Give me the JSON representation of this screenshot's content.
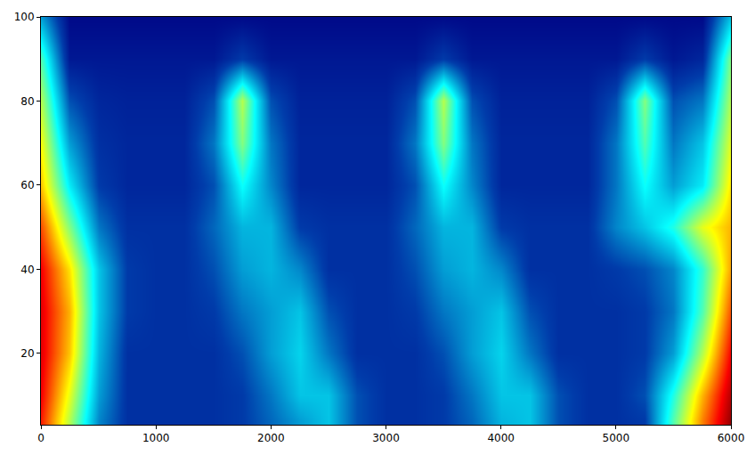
{
  "chart_data": {
    "type": "heatmap",
    "color": "Jet",
    "grid": false,
    "xlim": [
      0,
      6000
    ],
    "xticks": [
      0,
      1000,
      2000,
      3000,
      4000,
      5000,
      6000
    ],
    "ylim": [
      3,
      100
    ],
    "yticks": [
      20,
      40,
      60,
      80,
      100
    ],
    "zlim": [
      0,
      1
    ],
    "x": [
      0,
      250,
      500,
      750,
      1000,
      1250,
      1500,
      1750,
      2000,
      2250,
      2500,
      2750,
      3000,
      3250,
      3500,
      3750,
      4000,
      4250,
      4500,
      4750,
      5000,
      5250,
      5500,
      5750,
      6000
    ],
    "y": [
      4,
      10,
      20,
      30,
      40,
      50,
      60,
      70,
      80,
      90,
      100
    ],
    "z": [
      [
        0.85,
        0.55,
        0.22,
        0.1,
        0.1,
        0.1,
        0.1,
        0.12,
        0.18,
        0.25,
        0.3,
        0.15,
        0.1,
        0.1,
        0.12,
        0.18,
        0.28,
        0.3,
        0.15,
        0.1,
        0.1,
        0.12,
        0.45,
        0.75,
        0.98
      ],
      [
        0.88,
        0.6,
        0.25,
        0.1,
        0.1,
        0.1,
        0.1,
        0.12,
        0.2,
        0.3,
        0.3,
        0.15,
        0.1,
        0.1,
        0.12,
        0.2,
        0.3,
        0.3,
        0.15,
        0.1,
        0.1,
        0.15,
        0.4,
        0.7,
        0.95
      ],
      [
        0.9,
        0.68,
        0.28,
        0.1,
        0.1,
        0.1,
        0.1,
        0.15,
        0.25,
        0.32,
        0.2,
        0.1,
        0.1,
        0.1,
        0.15,
        0.25,
        0.32,
        0.2,
        0.1,
        0.1,
        0.1,
        0.12,
        0.25,
        0.55,
        0.88
      ],
      [
        0.9,
        0.7,
        0.3,
        0.12,
        0.1,
        0.1,
        0.12,
        0.2,
        0.25,
        0.3,
        0.15,
        0.1,
        0.1,
        0.12,
        0.2,
        0.25,
        0.3,
        0.15,
        0.1,
        0.1,
        0.1,
        0.12,
        0.2,
        0.45,
        0.8
      ],
      [
        0.88,
        0.65,
        0.3,
        0.12,
        0.1,
        0.1,
        0.15,
        0.25,
        0.28,
        0.22,
        0.1,
        0.1,
        0.1,
        0.15,
        0.25,
        0.28,
        0.22,
        0.1,
        0.1,
        0.1,
        0.12,
        0.15,
        0.22,
        0.42,
        0.72
      ],
      [
        0.8,
        0.5,
        0.2,
        0.1,
        0.1,
        0.1,
        0.18,
        0.28,
        0.28,
        0.12,
        0.1,
        0.1,
        0.1,
        0.18,
        0.28,
        0.28,
        0.12,
        0.1,
        0.1,
        0.1,
        0.22,
        0.3,
        0.4,
        0.6,
        0.7
      ],
      [
        0.68,
        0.35,
        0.12,
        0.08,
        0.08,
        0.08,
        0.15,
        0.38,
        0.22,
        0.08,
        0.08,
        0.08,
        0.08,
        0.15,
        0.38,
        0.22,
        0.08,
        0.08,
        0.08,
        0.08,
        0.2,
        0.38,
        0.25,
        0.35,
        0.65
      ],
      [
        0.62,
        0.25,
        0.1,
        0.08,
        0.08,
        0.08,
        0.2,
        0.5,
        0.2,
        0.08,
        0.08,
        0.08,
        0.08,
        0.2,
        0.5,
        0.2,
        0.08,
        0.08,
        0.08,
        0.08,
        0.2,
        0.45,
        0.2,
        0.3,
        0.6
      ],
      [
        0.55,
        0.15,
        0.08,
        0.07,
        0.07,
        0.07,
        0.15,
        0.55,
        0.15,
        0.07,
        0.07,
        0.07,
        0.07,
        0.15,
        0.55,
        0.15,
        0.07,
        0.07,
        0.07,
        0.07,
        0.15,
        0.5,
        0.15,
        0.2,
        0.55
      ],
      [
        0.45,
        0.05,
        0.05,
        0.05,
        0.05,
        0.05,
        0.05,
        0.12,
        0.05,
        0.05,
        0.05,
        0.05,
        0.05,
        0.05,
        0.12,
        0.05,
        0.05,
        0.05,
        0.05,
        0.05,
        0.05,
        0.12,
        0.05,
        0.08,
        0.5
      ],
      [
        0.25,
        0.02,
        0.02,
        0.02,
        0.02,
        0.02,
        0.02,
        0.02,
        0.02,
        0.02,
        0.02,
        0.02,
        0.02,
        0.02,
        0.02,
        0.02,
        0.02,
        0.02,
        0.02,
        0.02,
        0.02,
        0.02,
        0.02,
        0.02,
        0.3
      ]
    ]
  }
}
